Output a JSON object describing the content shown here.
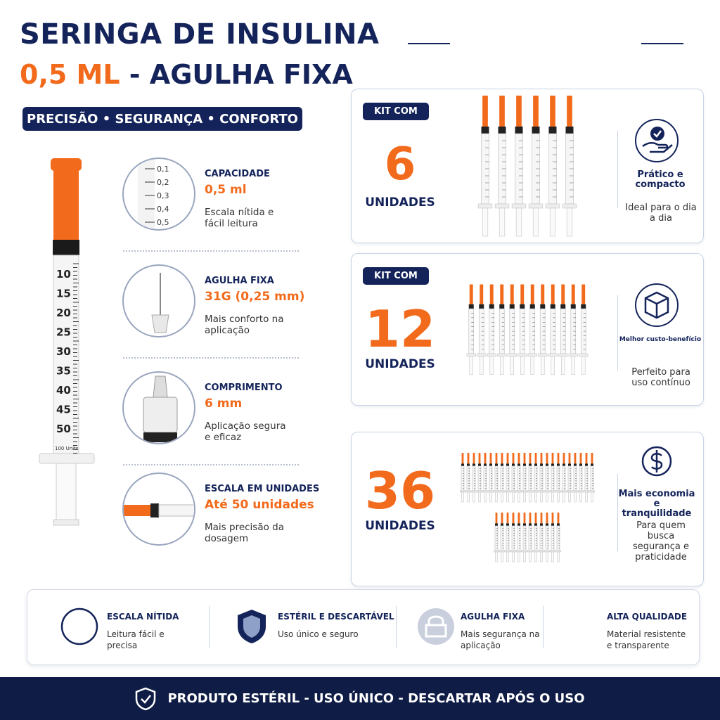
{
  "header": {
    "title": "SERINGA DE INSULINA",
    "subtitle_highlight": "0,5 ML",
    "subtitle_rest": " - AGULHA FIXA",
    "tagline": "PRECISÃO • SEGURANÇA • CONFORTO"
  },
  "syringe_scale": [
    "10",
    "15",
    "20",
    "25",
    "30",
    "35",
    "40",
    "45",
    "50"
  ],
  "syringe_unit": "100 Units",
  "features": [
    {
      "title": "CAPACIDADE",
      "value": "0,5 ml",
      "text": "Escala nítida e fácil leitura",
      "scale_labels": [
        "0,1",
        "0,2",
        "0,3",
        "0,4",
        "0,5"
      ]
    },
    {
      "title": "AGULHA FIXA",
      "value": "31G (0,25 mm)",
      "text": "Mais conforto na aplicação"
    },
    {
      "title": "COMPRIMENTO",
      "value": "6 mm",
      "text": "Aplicação segura e eficaz"
    },
    {
      "title": "ESCALA EM UNIDADES",
      "value": "Até 50 unidades",
      "text": "Mais precisão da dosagem"
    }
  ],
  "kits": [
    {
      "badge": "KIT COM",
      "count": 6,
      "unit": "UNIDADES",
      "benefit_title": "Prático e compacto",
      "benefit_text": "Ideal para o dia a dia"
    },
    {
      "badge": "KIT COM",
      "count": 12,
      "unit": "UNIDADES",
      "benefit_title": "Melhor custo-benefício",
      "benefit_text": "Perfeito para uso contínuo"
    },
    {
      "count": 36,
      "unit": "UNIDADES",
      "benefit_title": "Mais economia e tranquilidade",
      "benefit_text": "Para quem busca segurança e praticidade"
    }
  ],
  "highlights": [
    {
      "title": "ESCALA NÍTIDA",
      "text": "Leitura fácil e precisa"
    },
    {
      "title": "ESTÉRIL E DESCARTÁVEL",
      "text": "Uso único e seguro"
    },
    {
      "title": "AGULHA FIXA",
      "text": "Mais segurança na aplicação"
    },
    {
      "title": "ALTA QUALIDADE",
      "text": "Material resistente e transparente"
    }
  ],
  "footer": "PRODUTO ESTÉRIL - USO ÚNICO - DESCARTAR APÓS O USO"
}
